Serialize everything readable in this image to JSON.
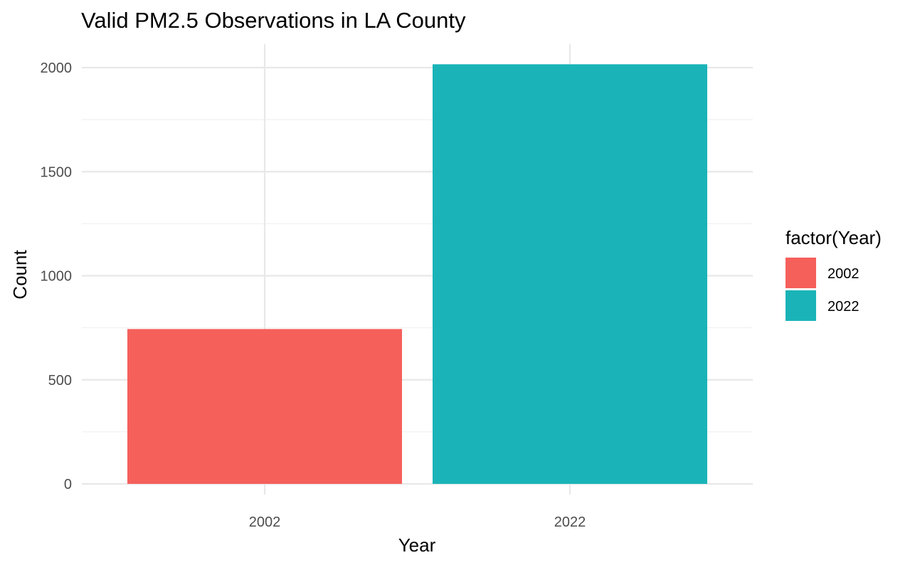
{
  "chart_data": {
    "type": "bar",
    "title": "Valid PM2.5 Observations in LA County",
    "xlabel": "Year",
    "ylabel": "Count",
    "categories": [
      "2002",
      "2022"
    ],
    "values": [
      744,
      2016
    ],
    "ylim": [
      0,
      2100
    ],
    "yticks": [
      0,
      500,
      1000,
      1500,
      2000
    ],
    "yticks_labels": [
      "0",
      "500",
      "1000",
      "1500",
      "2000"
    ],
    "grid": true,
    "legend": {
      "title": "factor(Year)",
      "position": "right",
      "entries": [
        {
          "label": "2002",
          "color": "#F8766D"
        },
        {
          "label": "2022",
          "color": "#00BFC4"
        }
      ]
    },
    "colors": [
      "#F5605B",
      "#1AB4B8"
    ]
  }
}
